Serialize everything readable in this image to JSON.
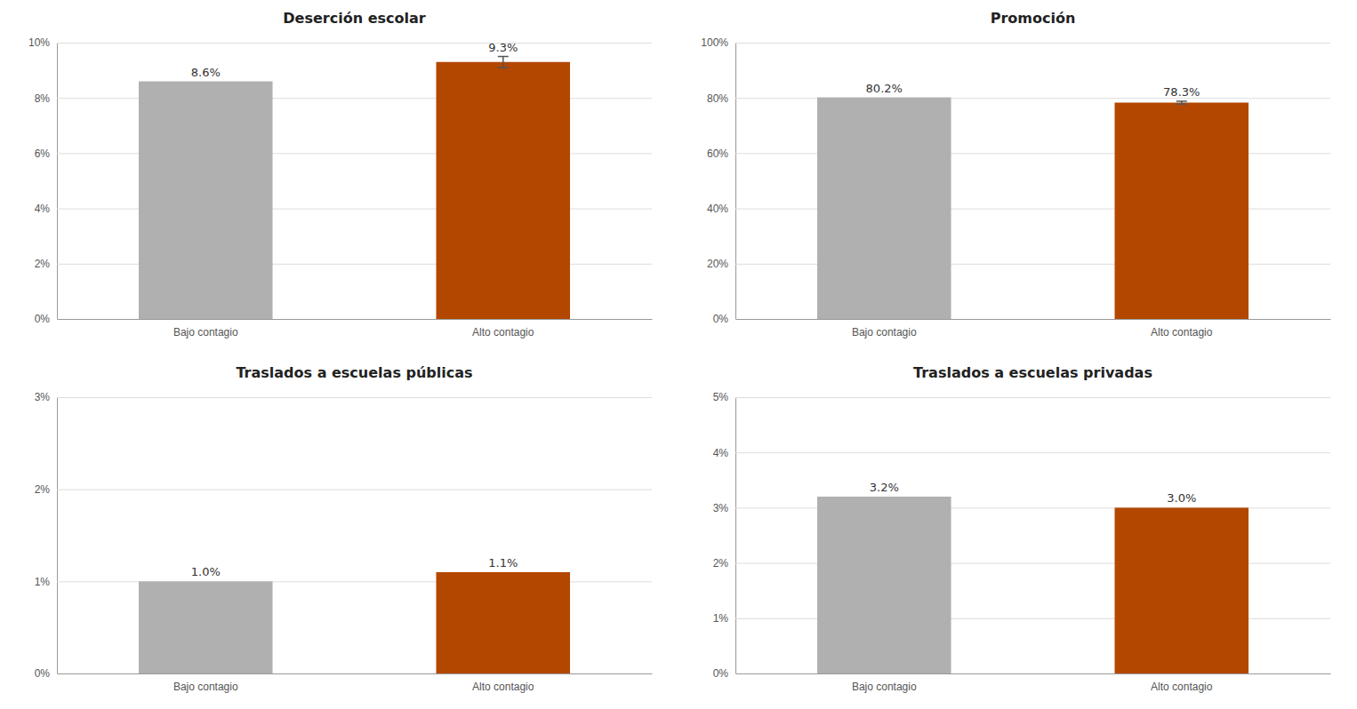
{
  "chart_data": [
    {
      "type": "bar",
      "title": "Deserción escolar",
      "categories": [
        "Bajo contagio",
        "Alto contagio"
      ],
      "values": [
        0.086,
        0.093
      ],
      "errors": [
        null,
        0.002
      ],
      "value_labels": [
        "8.6%",
        "9.3%"
      ],
      "data_labels": true,
      "colors": [
        "#b0b0b0",
        "#b34700"
      ],
      "ylim": [
        0,
        0.1
      ],
      "yticks": [
        {
          "value": 0,
          "label": "0%"
        },
        {
          "value": 0.02,
          "label": "2%"
        },
        {
          "value": 0.04,
          "label": "4%"
        },
        {
          "value": 0.06,
          "label": "6%"
        },
        {
          "value": 0.08,
          "label": "8%"
        },
        {
          "value": 0.1,
          "label": "10%"
        }
      ],
      "grid": true
    },
    {
      "type": "bar",
      "title": "Promoción",
      "categories": [
        "Bajo contagio",
        "Alto contagio"
      ],
      "values": [
        0.802,
        0.783
      ],
      "errors": [
        null,
        0.005
      ],
      "value_labels": [
        "80.2%",
        "78.3%"
      ],
      "data_labels": true,
      "colors": [
        "#b0b0b0",
        "#b34700"
      ],
      "ylim": [
        0,
        1.0
      ],
      "yticks": [
        {
          "value": 0,
          "label": "0%"
        },
        {
          "value": 0.2,
          "label": "20%"
        },
        {
          "value": 0.4,
          "label": "40%"
        },
        {
          "value": 0.6,
          "label": "60%"
        },
        {
          "value": 0.8,
          "label": "80%"
        },
        {
          "value": 1.0,
          "label": "100%"
        }
      ],
      "grid": true
    },
    {
      "type": "bar",
      "title": "Traslados a escuelas públicas",
      "categories": [
        "Bajo contagio",
        "Alto contagio"
      ],
      "values": [
        0.01,
        0.011
      ],
      "errors": [
        null,
        null
      ],
      "value_labels": [
        "1.0%",
        "1.1%"
      ],
      "data_labels": true,
      "colors": [
        "#b0b0b0",
        "#b34700"
      ],
      "ylim": [
        0,
        0.03
      ],
      "yticks": [
        {
          "value": 0,
          "label": "0%"
        },
        {
          "value": 0.01,
          "label": "1%"
        },
        {
          "value": 0.02,
          "label": "2%"
        },
        {
          "value": 0.03,
          "label": "3%"
        }
      ],
      "grid": true
    },
    {
      "type": "bar",
      "title": "Traslados a escuelas privadas",
      "categories": [
        "Bajo contagio",
        "Alto contagio"
      ],
      "values": [
        0.032,
        0.03
      ],
      "errors": [
        null,
        null
      ],
      "value_labels": [
        "3.2%",
        "3.0%"
      ],
      "data_labels": true,
      "colors": [
        "#b0b0b0",
        "#b34700"
      ],
      "ylim": [
        0,
        0.05
      ],
      "yticks": [
        {
          "value": 0,
          "label": "0%"
        },
        {
          "value": 0.01,
          "label": "1%"
        },
        {
          "value": 0.02,
          "label": "2%"
        },
        {
          "value": 0.03,
          "label": "3%"
        },
        {
          "value": 0.04,
          "label": "4%"
        },
        {
          "value": 0.05,
          "label": "5%"
        }
      ],
      "grid": true
    }
  ]
}
